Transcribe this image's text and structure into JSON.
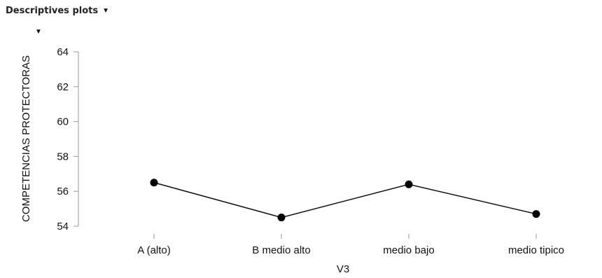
{
  "header": {
    "title": "Descriptives plots",
    "menu_icon": "caret-down-icon"
  },
  "chart_data": {
    "type": "line",
    "categories": [
      "A (alto)",
      "B medio alto",
      "medio bajo",
      "medio tipico"
    ],
    "series": [
      {
        "values": [
          56.5,
          54.5,
          56.4,
          54.7
        ]
      }
    ],
    "xlabel": "V3",
    "ylabel": "COMPETENCIAS PROTECTORAS",
    "ylim": [
      54,
      64
    ],
    "yticks": [
      54,
      56,
      58,
      60,
      62,
      64
    ],
    "grid": false,
    "line_color": "#111111",
    "marker_color": "#000000"
  }
}
